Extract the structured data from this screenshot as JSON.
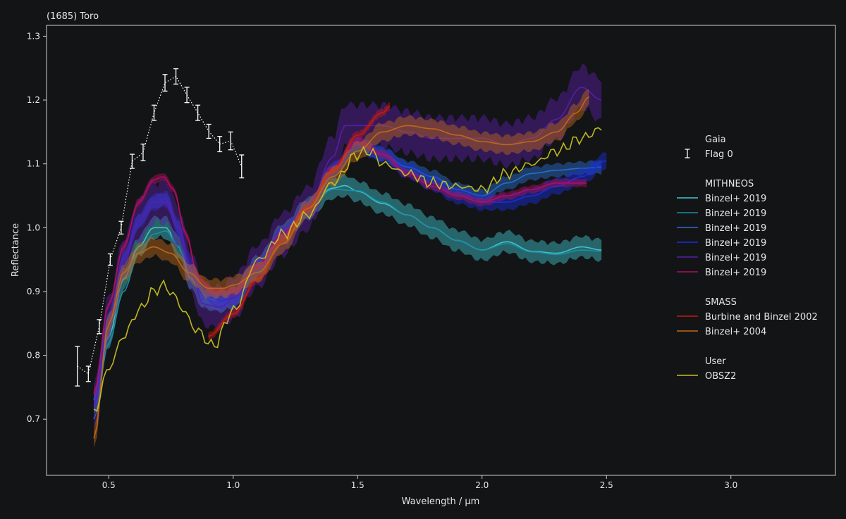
{
  "chart_data": {
    "type": "line",
    "title": "(1685) Toro",
    "xlabel": "Wavelength / μm",
    "ylabel": "Reflectance",
    "xlim": [
      0.25,
      3.42
    ],
    "ylim": [
      0.612,
      1.317
    ],
    "xticks": [
      0.5,
      1.0,
      1.5,
      2.0,
      2.5,
      3.0
    ],
    "xtick_labels": [
      "0.5",
      "1.0",
      "1.5",
      "2.0",
      "2.5",
      "3.0"
    ],
    "yticks": [
      0.7,
      0.8,
      0.9,
      1.0,
      1.1,
      1.2,
      1.3
    ],
    "ytick_labels": [
      "0.7",
      "0.8",
      "0.9",
      "1.0",
      "1.1",
      "1.2",
      "1.3"
    ],
    "grid": false,
    "legend_position": "right",
    "legend": {
      "groups": [
        {
          "header": "Gaia",
          "entries": [
            {
              "label": "Flag 0",
              "color": "#ffffff",
              "marker": "errorbar"
            }
          ]
        },
        {
          "header": "MITHNEOS",
          "entries": [
            {
              "label": "Binzel+ 2019",
              "color": "#40c8d0"
            },
            {
              "label": "Binzel+ 2019",
              "color": "#1a8fa6"
            },
            {
              "label": "Binzel+ 2019",
              "color": "#2a6fd0"
            },
            {
              "label": "Binzel+ 2019",
              "color": "#1a2ee0"
            },
            {
              "label": "Binzel+ 2019",
              "color": "#5a1ea8"
            },
            {
              "label": "Binzel+ 2019",
              "color": "#b01060"
            }
          ]
        },
        {
          "header": "SMASS",
          "entries": [
            {
              "label": "Burbine and Binzel 2002",
              "color": "#c81a10"
            },
            {
              "label": "Binzel+ 2004",
              "color": "#c06a18"
            }
          ]
        },
        {
          "header": "User",
          "entries": [
            {
              "label": "OBSZ2",
              "color": "#c8c020"
            }
          ]
        }
      ]
    },
    "gaia": {
      "color": "#ffffff",
      "x": [
        0.374,
        0.418,
        0.462,
        0.506,
        0.55,
        0.594,
        0.638,
        0.682,
        0.726,
        0.77,
        0.814,
        0.858,
        0.902,
        0.946,
        0.99,
        1.034
      ],
      "y": [
        0.783,
        0.771,
        0.845,
        0.95,
        1.0,
        1.104,
        1.118,
        1.18,
        1.227,
        1.237,
        1.208,
        1.18,
        1.151,
        1.131,
        1.136,
        1.096
      ],
      "err": [
        0.031,
        0.012,
        0.011,
        0.009,
        0.01,
        0.011,
        0.013,
        0.012,
        0.013,
        0.012,
        0.012,
        0.012,
        0.011,
        0.012,
        0.014,
        0.018
      ]
    },
    "series": [
      {
        "name": "Binzel+ 2019",
        "group": "MITHNEOS",
        "color": "#40c8d0",
        "band": 0.016,
        "x": [
          0.44,
          0.5,
          0.56,
          0.62,
          0.68,
          0.73,
          0.78,
          0.83,
          0.88,
          0.95,
          1.0,
          1.1,
          1.2,
          1.3,
          1.4,
          1.45,
          1.5,
          1.6,
          1.7,
          1.8,
          1.9,
          2.0,
          2.1,
          2.2,
          2.3,
          2.4,
          2.48
        ],
        "y": [
          0.72,
          0.83,
          0.92,
          0.97,
          1.0,
          1.0,
          0.97,
          0.92,
          0.89,
          0.885,
          0.89,
          0.94,
          0.99,
          1.03,
          1.062,
          1.066,
          1.057,
          1.038,
          1.02,
          1.0,
          0.98,
          0.965,
          0.978,
          0.963,
          0.96,
          0.97,
          0.965
        ]
      },
      {
        "name": "Binzel+ 2019",
        "group": "MITHNEOS",
        "color": "#1a8fa6",
        "band": 0.0,
        "x": [
          0.44,
          0.5,
          0.56,
          0.62,
          0.68,
          0.73,
          0.78,
          0.83,
          0.88,
          0.95,
          1.0,
          1.1,
          1.2,
          1.3,
          1.4,
          1.5,
          1.6,
          1.7,
          1.8,
          1.9,
          2.0,
          2.1,
          2.2,
          2.3,
          2.4,
          2.48
        ],
        "y": [
          0.7,
          0.82,
          0.9,
          0.96,
          0.99,
          0.995,
          0.97,
          0.93,
          0.9,
          0.893,
          0.9,
          0.94,
          0.99,
          1.03,
          1.06,
          1.058,
          1.04,
          1.02,
          1.0,
          0.98,
          0.965,
          0.975,
          0.962,
          0.958,
          0.965,
          0.963
        ]
      },
      {
        "name": "Binzel+ 2019",
        "group": "MITHNEOS",
        "color": "#2a6fd0",
        "band": 0.01,
        "x": [
          0.44,
          0.5,
          0.56,
          0.62,
          0.68,
          0.73,
          0.78,
          0.83,
          0.88,
          0.95,
          1.0,
          1.1,
          1.2,
          1.3,
          1.4,
          1.5,
          1.6,
          1.7,
          1.8,
          1.9,
          2.0,
          2.1,
          2.2,
          2.3,
          2.4,
          2.48
        ],
        "y": [
          0.73,
          0.86,
          0.95,
          1.01,
          1.04,
          1.045,
          1.0,
          0.93,
          0.885,
          0.88,
          0.89,
          0.94,
          0.99,
          1.03,
          1.09,
          1.13,
          1.115,
          1.095,
          1.08,
          1.06,
          1.05,
          1.07,
          1.085,
          1.09,
          1.093,
          1.095
        ]
      },
      {
        "name": "Binzel+ 2019",
        "group": "MITHNEOS",
        "color": "#1a2ee0",
        "band": 0.012,
        "x": [
          0.44,
          0.5,
          0.56,
          0.62,
          0.68,
          0.73,
          0.78,
          0.83,
          0.88,
          0.95,
          1.0,
          1.1,
          1.2,
          1.3,
          1.4,
          1.5,
          1.6,
          1.7,
          1.8,
          1.9,
          2.0,
          2.1,
          2.2,
          2.3,
          2.4,
          2.5
        ],
        "y": [
          0.72,
          0.85,
          0.95,
          1.01,
          1.04,
          1.045,
          1.0,
          0.94,
          0.9,
          0.885,
          0.89,
          0.94,
          0.99,
          1.03,
          1.09,
          1.13,
          1.115,
          1.09,
          1.07,
          1.05,
          1.04,
          1.04,
          1.05,
          1.065,
          1.08,
          1.105
        ]
      },
      {
        "name": "Binzel+ 2019",
        "group": "MITHNEOS",
        "color": "#5a1ea8",
        "band": 0.032,
        "x": [
          0.44,
          0.5,
          0.56,
          0.62,
          0.68,
          0.73,
          0.78,
          0.83,
          0.88,
          0.95,
          1.0,
          1.1,
          1.2,
          1.3,
          1.4,
          1.45,
          1.5,
          1.6,
          1.7,
          1.8,
          1.9,
          2.0,
          2.1,
          2.2,
          2.3,
          2.4,
          2.48
        ],
        "y": [
          0.72,
          0.86,
          0.95,
          1.01,
          1.04,
          1.04,
          1.0,
          0.93,
          0.88,
          0.875,
          0.89,
          0.94,
          0.99,
          1.03,
          1.11,
          1.16,
          1.16,
          1.16,
          1.15,
          1.14,
          1.14,
          1.14,
          1.13,
          1.14,
          1.17,
          1.22,
          1.2
        ]
      },
      {
        "name": "Binzel+ 2019",
        "group": "MITHNEOS",
        "color": "#b01060",
        "band": 0.006,
        "x": [
          0.44,
          0.5,
          0.56,
          0.62,
          0.68,
          0.72,
          0.76,
          0.81,
          0.86,
          0.92,
          1.0,
          1.1,
          1.2,
          1.3,
          1.4,
          1.5,
          1.6,
          1.7,
          1.8,
          1.9,
          2.0,
          2.1,
          2.2,
          2.3,
          2.42
        ],
        "y": [
          0.74,
          0.88,
          0.97,
          1.04,
          1.075,
          1.08,
          1.06,
          0.99,
          0.92,
          0.9,
          0.9,
          0.94,
          0.99,
          1.03,
          1.09,
          1.135,
          1.115,
          1.085,
          1.065,
          1.05,
          1.04,
          1.05,
          1.06,
          1.07,
          1.07
        ]
      },
      {
        "name": "Burbine and Binzel 2002",
        "group": "SMASS",
        "color": "#c81a10",
        "band": 0.006,
        "x": [
          0.9,
          1.0,
          1.1,
          1.2,
          1.3,
          1.4,
          1.5,
          1.6,
          1.63
        ],
        "y": [
          0.83,
          0.865,
          0.92,
          0.98,
          1.03,
          1.09,
          1.145,
          1.18,
          1.19
        ]
      },
      {
        "name": "Binzel+ 2004",
        "group": "SMASS",
        "color": "#c06a18",
        "band": 0.014,
        "x": [
          0.44,
          0.5,
          0.56,
          0.62,
          0.68,
          0.75,
          0.82,
          0.9,
          0.96,
          1.0,
          1.1,
          1.2,
          1.3,
          1.4,
          1.5,
          1.6,
          1.7,
          1.8,
          1.9,
          2.0,
          2.1,
          2.2,
          2.3,
          2.38,
          2.43
        ],
        "y": [
          0.67,
          0.85,
          0.93,
          0.96,
          0.97,
          0.96,
          0.93,
          0.905,
          0.905,
          0.91,
          0.93,
          0.975,
          1.03,
          1.08,
          1.12,
          1.15,
          1.16,
          1.155,
          1.145,
          1.135,
          1.13,
          1.135,
          1.15,
          1.18,
          1.205
        ]
      },
      {
        "name": "OBSZ2",
        "group": "User",
        "color": "#c8c020",
        "band": 0.0,
        "noise": 0.006,
        "x": [
          0.44,
          0.5,
          0.56,
          0.62,
          0.68,
          0.72,
          0.76,
          0.8,
          0.85,
          0.92,
          1.0,
          1.1,
          1.2,
          1.3,
          1.4,
          1.5,
          1.55,
          1.6,
          1.7,
          1.8,
          1.9,
          2.0,
          2.1,
          2.2,
          2.3,
          2.4,
          2.48
        ],
        "y": [
          0.71,
          0.78,
          0.83,
          0.87,
          0.9,
          0.91,
          0.895,
          0.87,
          0.84,
          0.815,
          0.87,
          0.95,
          0.99,
          1.02,
          1.07,
          1.115,
          1.12,
          1.1,
          1.085,
          1.07,
          1.065,
          1.06,
          1.085,
          1.1,
          1.12,
          1.14,
          1.155
        ]
      }
    ]
  }
}
